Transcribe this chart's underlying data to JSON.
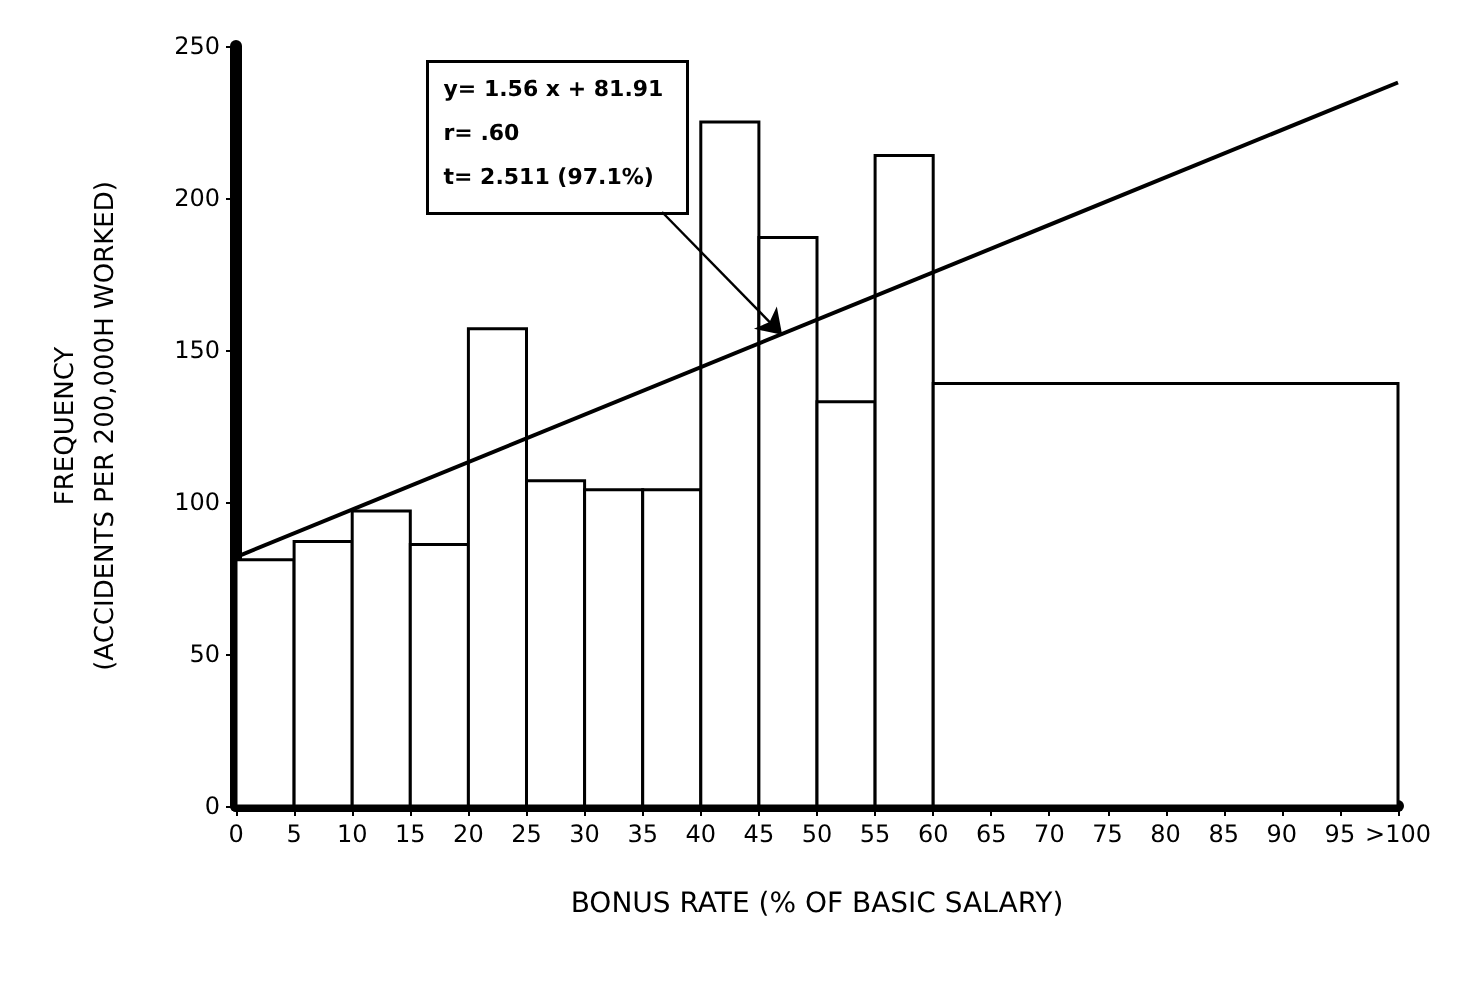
{
  "chart_data": {
    "type": "histogram",
    "xlabel": "BONUS RATE (% OF BASIC SALARY)",
    "ylabel": "FREQUENCY\n(ACCIDENTS PER 200,000H WORKED)",
    "bins": [
      0,
      5,
      10,
      15,
      20,
      25,
      30,
      35,
      40,
      45,
      50,
      55,
      60,
      100
    ],
    "values": [
      81,
      87,
      97,
      86,
      157,
      107,
      104,
      104,
      225,
      187,
      133,
      214,
      139
    ],
    "color": "#ffffff",
    "series": [
      {
        "type": "line",
        "x": [
          0,
          100
        ],
        "values": [
          81.9,
          238
        ],
        "color": "#000000"
      }
    ],
    "annotations": [
      "y= 1.56 x + 81.91",
      "r= .60",
      {
        "text": "t= 2.511 (97.1%)",
        "x": 47,
        "y": 155
      }
    ],
    "xlim": [
      0,
      100
    ],
    "xticks": [
      0,
      5,
      10,
      15,
      20,
      25,
      30,
      35,
      40,
      45,
      50,
      55,
      60,
      65,
      70,
      75,
      80,
      85,
      90,
      95,
      {
        "value": 100,
        "label": ">100"
      }
    ],
    "ylim": [
      0,
      250
    ],
    "yticks": [
      0,
      50,
      100,
      150,
      200,
      250
    ],
    "grid": false,
    "marker": "none",
    "line_style": "solid"
  }
}
